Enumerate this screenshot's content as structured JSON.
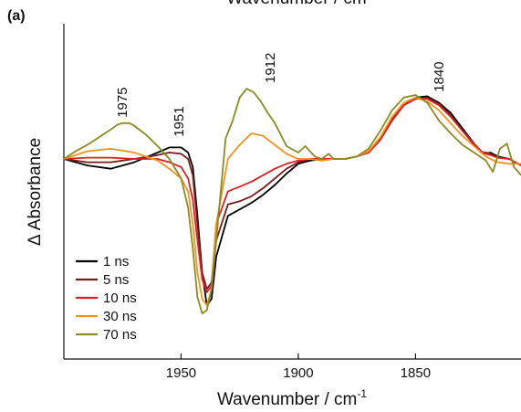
{
  "chart_data": {
    "type": "line",
    "panel_label": "(a)",
    "top_axis_title_partial": "Wavenumber / cm",
    "xlabel": "Wavenumber / cm",
    "xlabel_superscript": "-1",
    "ylabel": "Δ Absorbance",
    "xlim": [
      2000,
      1805
    ],
    "x_reversed": true,
    "ylim": [
      -1.0,
      1.0
    ],
    "xticks": [
      1950,
      1900,
      1850
    ],
    "yticks_shown": false,
    "grid": false,
    "legend_position": "bottom-left",
    "annotations": [
      {
        "text": "1975",
        "x": 1975,
        "y": 0.28
      },
      {
        "text": "1951",
        "x": 1951,
        "y": 0.13
      },
      {
        "text": "1912",
        "x": 1912,
        "y": 0.55
      },
      {
        "text": "1840",
        "x": 1840,
        "y": 0.48
      }
    ],
    "series": [
      {
        "name": "1 ns",
        "color": "#000000",
        "x": [
          2000,
          1990,
          1980,
          1970,
          1960,
          1955,
          1950,
          1947,
          1945,
          1943,
          1941,
          1939,
          1937,
          1935,
          1930,
          1925,
          1920,
          1915,
          1910,
          1905,
          1900,
          1895,
          1890,
          1885,
          1880,
          1875,
          1870,
          1865,
          1860,
          1855,
          1850,
          1845,
          1840,
          1835,
          1830,
          1825,
          1822,
          1820,
          1818,
          1815,
          1810,
          1805
        ],
        "y": [
          0.0,
          -0.04,
          -0.06,
          -0.02,
          0.05,
          0.09,
          0.09,
          0.05,
          -0.05,
          -0.35,
          -0.7,
          -0.9,
          -0.86,
          -0.6,
          -0.35,
          -0.31,
          -0.27,
          -0.22,
          -0.16,
          -0.09,
          -0.03,
          -0.01,
          0.0,
          0.0,
          0.0,
          0.02,
          0.05,
          0.15,
          0.3,
          0.42,
          0.48,
          0.49,
          0.44,
          0.36,
          0.24,
          0.12,
          0.06,
          0.04,
          0.05,
          0.02,
          0.0,
          -0.04
        ]
      },
      {
        "name": "5 ns",
        "color": "#7a1a1a",
        "x": [
          2000,
          1990,
          1980,
          1970,
          1960,
          1955,
          1950,
          1947,
          1945,
          1943,
          1941,
          1939,
          1937,
          1935,
          1930,
          1925,
          1920,
          1915,
          1910,
          1905,
          1900,
          1895,
          1890,
          1885,
          1880,
          1875,
          1870,
          1865,
          1860,
          1855,
          1850,
          1845,
          1840,
          1835,
          1830,
          1825,
          1822,
          1820,
          1818,
          1815,
          1810,
          1805
        ],
        "y": [
          0.0,
          -0.02,
          -0.02,
          0.0,
          0.03,
          0.05,
          0.04,
          0.0,
          -0.1,
          -0.4,
          -0.7,
          -0.8,
          -0.76,
          -0.5,
          -0.28,
          -0.26,
          -0.23,
          -0.18,
          -0.12,
          -0.06,
          -0.02,
          0.0,
          0.0,
          0.0,
          0.0,
          0.02,
          0.06,
          0.16,
          0.31,
          0.42,
          0.47,
          0.48,
          0.43,
          0.34,
          0.22,
          0.11,
          0.05,
          0.05,
          0.04,
          0.01,
          0.0,
          -0.04
        ]
      },
      {
        "name": "10 ns",
        "color": "#e02020",
        "x": [
          2000,
          1990,
          1980,
          1970,
          1960,
          1955,
          1950,
          1947,
          1945,
          1943,
          1941,
          1939,
          1937,
          1935,
          1930,
          1925,
          1920,
          1915,
          1910,
          1905,
          1900,
          1895,
          1890,
          1885,
          1880,
          1875,
          1870,
          1865,
          1860,
          1855,
          1850,
          1845,
          1840,
          1835,
          1830,
          1825,
          1822,
          1820,
          1818,
          1815,
          1810,
          1805
        ],
        "y": [
          0.0,
          0.01,
          0.01,
          0.0,
          0.0,
          -0.02,
          -0.05,
          -0.12,
          -0.25,
          -0.5,
          -0.74,
          -0.82,
          -0.78,
          -0.4,
          -0.2,
          -0.17,
          -0.14,
          -0.1,
          -0.06,
          -0.03,
          -0.01,
          0.0,
          0.0,
          0.0,
          0.0,
          0.02,
          0.05,
          0.15,
          0.3,
          0.42,
          0.47,
          0.47,
          0.42,
          0.33,
          0.22,
          0.12,
          0.06,
          0.04,
          0.03,
          0.01,
          0.0,
          -0.04
        ]
      },
      {
        "name": "30 ns",
        "color": "#f7921e",
        "x": [
          2000,
          1990,
          1980,
          1970,
          1960,
          1955,
          1950,
          1947,
          1945,
          1943,
          1941,
          1939,
          1937,
          1935,
          1930,
          1925,
          1920,
          1915,
          1910,
          1905,
          1900,
          1895,
          1890,
          1885,
          1880,
          1875,
          1870,
          1865,
          1860,
          1855,
          1850,
          1845,
          1840,
          1835,
          1830,
          1825,
          1822,
          1820,
          1818,
          1815,
          1810,
          1805
        ],
        "y": [
          0.0,
          0.06,
          0.08,
          0.05,
          -0.01,
          -0.06,
          -0.12,
          -0.2,
          -0.4,
          -0.7,
          -0.86,
          -0.9,
          -0.8,
          -0.4,
          0.0,
          0.11,
          0.2,
          0.18,
          0.11,
          0.04,
          0.0,
          0.0,
          -0.01,
          0.0,
          0.0,
          0.02,
          0.06,
          0.17,
          0.33,
          0.44,
          0.48,
          0.45,
          0.38,
          0.28,
          0.18,
          0.1,
          0.05,
          0.02,
          0.0,
          -0.02,
          -0.03,
          -0.03
        ]
      },
      {
        "name": "70 ns",
        "color": "#8b8b1e",
        "x": [
          2000,
          1995,
          1990,
          1985,
          1980,
          1977,
          1975,
          1972,
          1970,
          1965,
          1960,
          1955,
          1950,
          1947,
          1945,
          1943,
          1941,
          1939,
          1937,
          1935,
          1931,
          1928,
          1925,
          1922,
          1919,
          1916,
          1913,
          1910,
          1905,
          1900,
          1897,
          1893,
          1890,
          1887,
          1885,
          1880,
          1875,
          1870,
          1865,
          1860,
          1855,
          1850,
          1845,
          1840,
          1835,
          1830,
          1825,
          1820,
          1817,
          1814,
          1811,
          1808,
          1805
        ],
        "y": [
          0.0,
          0.06,
          0.11,
          0.17,
          0.23,
          0.27,
          0.28,
          0.28,
          0.26,
          0.19,
          0.1,
          0.0,
          -0.12,
          -0.3,
          -0.55,
          -0.85,
          -0.95,
          -0.93,
          -0.8,
          -0.5,
          0.16,
          0.3,
          0.48,
          0.55,
          0.52,
          0.45,
          0.36,
          0.28,
          0.1,
          0.05,
          0.1,
          0.02,
          0.0,
          0.04,
          0.0,
          0.0,
          0.02,
          0.08,
          0.22,
          0.38,
          0.48,
          0.5,
          0.44,
          0.3,
          0.2,
          0.11,
          0.05,
          -0.01,
          -0.08,
          0.08,
          0.12,
          -0.05,
          -0.1
        ]
      }
    ]
  }
}
